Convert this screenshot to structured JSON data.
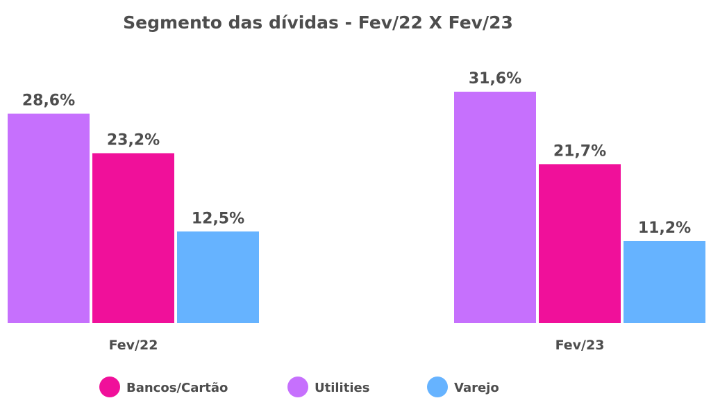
{
  "chart_data": {
    "type": "bar",
    "title": "Segmento das dívidas - Fev/22 X Fev/23",
    "categories": [
      "Fev/22",
      "Fev/23"
    ],
    "series": [
      {
        "name": "Utilities",
        "color": "#c670fd",
        "values": [
          28.6,
          31.6
        ],
        "labels": [
          "28,6%",
          "31,6%"
        ]
      },
      {
        "name": "Bancos/Cartão",
        "color": "#f0109a",
        "values": [
          23.2,
          21.7
        ],
        "labels": [
          "23,2%",
          "21,7%"
        ]
      },
      {
        "name": "Varejo",
        "color": "#66b3ff",
        "values": [
          12.5,
          11.2
        ],
        "labels": [
          "12,5%",
          "11,2%"
        ]
      }
    ],
    "legend": [
      {
        "name": "Bancos/Cartão",
        "color": "#f0109a"
      },
      {
        "name": "Utilities",
        "color": "#c670fd"
      },
      {
        "name": "Varejo",
        "color": "#66b3ff"
      }
    ],
    "xlabel": "",
    "ylabel": "",
    "ylim": [
      0,
      31.6
    ],
    "grid": false,
    "legend_position": "bottom"
  }
}
